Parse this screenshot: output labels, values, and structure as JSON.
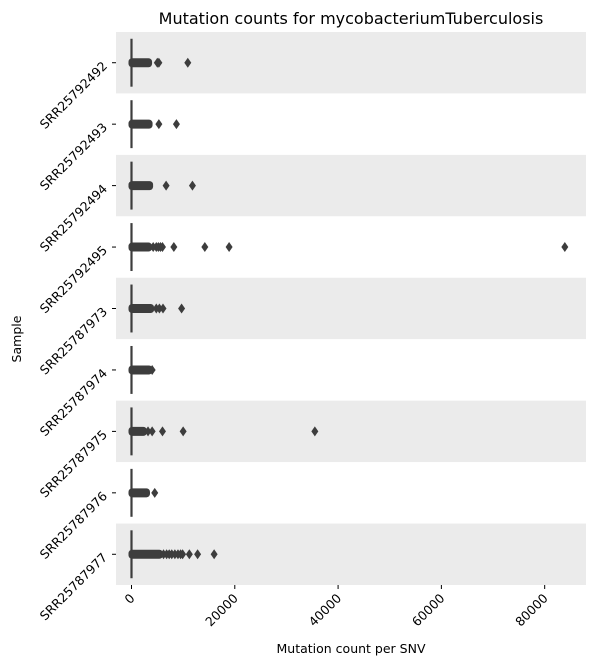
{
  "chart_data": {
    "type": "box",
    "orientation": "horizontal",
    "title": "Mutation counts for mycobacteriumTuberculosis",
    "xlabel": "Mutation count per SNV",
    "ylabel": "Sample",
    "xlim": [
      -3000,
      88000
    ],
    "xticks": [
      0,
      20000,
      40000,
      60000,
      80000
    ],
    "xtick_rotation": 45,
    "ytick_rotation": 45,
    "band_colors": [
      "#ebebeb",
      "#ffffff"
    ],
    "box_color": "#3d3d3d",
    "categories": [
      "SRR25792492",
      "SRR25792493",
      "SRR25792494",
      "SRR25792495",
      "SRR25787973",
      "SRR25787974",
      "SRR25787975",
      "SRR25787976",
      "SRR25787977"
    ],
    "series": [
      {
        "sample": "SRR25792492",
        "median": 0,
        "whisker_low": 0,
        "whisker_high": 0,
        "outlier_range": [
          0,
          3400
        ],
        "outliers": [
          5000,
          5300,
          10900
        ]
      },
      {
        "sample": "SRR25792493",
        "median": 0,
        "whisker_low": 0,
        "whisker_high": 0,
        "outlier_range": [
          0,
          3500
        ],
        "outliers": [
          5300,
          8700
        ]
      },
      {
        "sample": "SRR25792494",
        "median": 0,
        "whisker_low": 0,
        "whisker_high": 0,
        "outlier_range": [
          0,
          3600
        ],
        "outliers": [
          6700,
          11800
        ]
      },
      {
        "sample": "SRR25792495",
        "median": 0,
        "whisker_low": 0,
        "whisker_high": 0,
        "outlier_range": [
          0,
          3400
        ],
        "outliers": [
          4200,
          4800,
          5200,
          5600,
          6000,
          8200,
          14200,
          18900,
          83900
        ]
      },
      {
        "sample": "SRR25787973",
        "median": 0,
        "whisker_low": 0,
        "whisker_high": 0,
        "outlier_range": [
          0,
          3800
        ],
        "outliers": [
          4800,
          5400,
          6100,
          9700
        ]
      },
      {
        "sample": "SRR25787974",
        "median": 0,
        "whisker_low": 0,
        "whisker_high": 0,
        "outlier_range": [
          0,
          3500
        ],
        "outliers": [
          4000
        ]
      },
      {
        "sample": "SRR25787975",
        "median": 0,
        "whisker_low": 0,
        "whisker_high": 0,
        "outlier_range": [
          0,
          2400
        ],
        "outliers": [
          3200,
          4000,
          6000,
          10000,
          35500
        ]
      },
      {
        "sample": "SRR25787976",
        "median": 0,
        "whisker_low": 0,
        "whisker_high": 0,
        "outlier_range": [
          0,
          3000
        ],
        "outliers": [
          4500
        ]
      },
      {
        "sample": "SRR25787977",
        "median": 0,
        "whisker_low": 0,
        "whisker_high": 0,
        "outlier_range": [
          0,
          5500
        ],
        "outliers": [
          6200,
          6800,
          7300,
          7800,
          8400,
          9000,
          9500,
          9900,
          11200,
          12800,
          16000
        ]
      }
    ]
  }
}
